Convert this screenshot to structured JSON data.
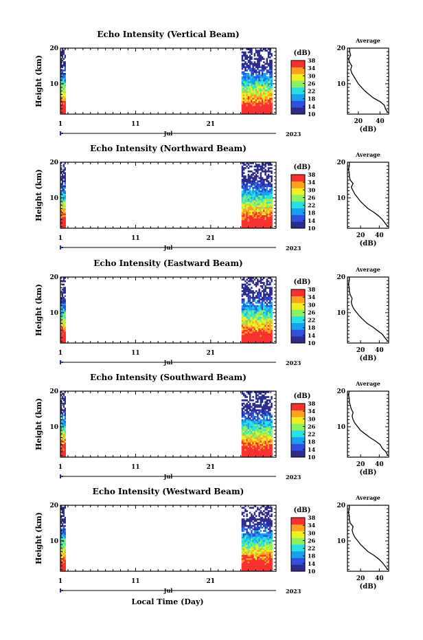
{
  "figure": {
    "x_axis_title": "Local Time (Day)",
    "month_label": "Jul",
    "year_label": "2023",
    "x_tick_labels": [
      "1",
      "11",
      "21"
    ],
    "y_axis_title": "Height (km)",
    "y_tick_labels": [
      "20",
      "10"
    ],
    "colorbar_unit": "(dB)",
    "colorbar_ticks": [
      "38",
      "34",
      "30",
      "26",
      "22",
      "18",
      "14",
      "10"
    ],
    "profile_title": "Average",
    "profile_xlabel": "(dB)",
    "colors": {
      "scale": [
        "#2c2c8c",
        "#3050e0",
        "#18a0f0",
        "#28e0e0",
        "#8cf060",
        "#f0f020",
        "#ffa020",
        "#f83030"
      ],
      "axis": "#000000",
      "time_marker": "#2030a0"
    }
  },
  "chart_data": [
    {
      "type": "heatmap",
      "title": "Echo Intensity (Vertical Beam)",
      "x_range_day": [
        1,
        29.7
      ],
      "y_range_km": [
        1.5,
        20
      ],
      "color_range_db": [
        10,
        38
      ],
      "data_segments_day": [
        [
          1,
          1.7
        ],
        [
          25.1,
          29.2
        ]
      ],
      "profile": {
        "title": "Average",
        "type": "line",
        "x_ticks": [
          "20",
          "40"
        ],
        "xlim": [
          10,
          48
        ],
        "points": [
          [
            47,
            2
          ],
          [
            45,
            3
          ],
          [
            44,
            4
          ],
          [
            40,
            5
          ],
          [
            34,
            6
          ],
          [
            30,
            7
          ],
          [
            26,
            8
          ],
          [
            23,
            9
          ],
          [
            20,
            10
          ],
          [
            18,
            11
          ],
          [
            16,
            12
          ],
          [
            14,
            13
          ],
          [
            13,
            14
          ],
          [
            14,
            15
          ],
          [
            12,
            16
          ],
          [
            11,
            17
          ],
          [
            13,
            18
          ],
          [
            12,
            19
          ],
          [
            12,
            20
          ]
        ]
      }
    },
    {
      "type": "heatmap",
      "title": "Echo Intensity (Northward Beam)",
      "x_range_day": [
        1,
        29.7
      ],
      "y_range_km": [
        1.5,
        20
      ],
      "color_range_db": [
        10,
        38
      ],
      "data_segments_day": [
        [
          1,
          1.7
        ],
        [
          25.1,
          29.2
        ]
      ],
      "profile": {
        "title": "Average",
        "type": "line",
        "x_ticks": [
          "20",
          "40"
        ],
        "xlim": [
          6,
          50
        ],
        "points": [
          [
            49,
            2
          ],
          [
            46,
            3
          ],
          [
            43,
            4
          ],
          [
            39,
            5
          ],
          [
            34,
            6
          ],
          [
            28,
            7
          ],
          [
            24,
            8
          ],
          [
            20,
            9
          ],
          [
            17,
            10
          ],
          [
            14,
            11
          ],
          [
            12,
            12
          ],
          [
            10,
            13
          ],
          [
            12,
            14
          ],
          [
            9,
            15
          ],
          [
            8,
            16
          ],
          [
            8,
            17
          ],
          [
            7,
            18
          ],
          [
            8,
            19
          ],
          [
            8,
            20
          ]
        ]
      }
    },
    {
      "type": "heatmap",
      "title": "Echo Intensity (Eastward Beam)",
      "x_range_day": [
        1,
        29.7
      ],
      "y_range_km": [
        1.5,
        20
      ],
      "color_range_db": [
        10,
        38
      ],
      "data_segments_day": [
        [
          1,
          1.7
        ],
        [
          25.1,
          29.2
        ]
      ],
      "profile": {
        "title": "Average",
        "type": "line",
        "x_ticks": [
          "20",
          "40"
        ],
        "xlim": [
          6,
          50
        ],
        "points": [
          [
            49,
            2
          ],
          [
            46,
            3
          ],
          [
            43,
            4
          ],
          [
            38,
            5
          ],
          [
            33,
            6
          ],
          [
            27,
            7
          ],
          [
            23,
            8
          ],
          [
            19,
            9
          ],
          [
            16,
            10
          ],
          [
            13,
            11
          ],
          [
            11,
            12
          ],
          [
            10,
            13
          ],
          [
            11,
            14
          ],
          [
            9,
            15
          ],
          [
            8,
            16
          ],
          [
            8,
            17
          ],
          [
            7,
            18
          ],
          [
            8,
            19
          ],
          [
            8,
            20
          ]
        ]
      }
    },
    {
      "type": "heatmap",
      "title": "Echo Intensity (Southward Beam)",
      "x_range_day": [
        1,
        29.7
      ],
      "y_range_km": [
        1.5,
        20
      ],
      "color_range_db": [
        10,
        38
      ],
      "data_segments_day": [
        [
          1,
          1.7
        ],
        [
          25.1,
          29.2
        ]
      ],
      "profile": {
        "title": "Average",
        "type": "line",
        "x_ticks": [
          "20",
          "40"
        ],
        "xlim": [
          6,
          50
        ],
        "points": [
          [
            49,
            2
          ],
          [
            47,
            3
          ],
          [
            43,
            4
          ],
          [
            41,
            5
          ],
          [
            36,
            6
          ],
          [
            30,
            7
          ],
          [
            25,
            8
          ],
          [
            20,
            9
          ],
          [
            17,
            10
          ],
          [
            14,
            11
          ],
          [
            12,
            12
          ],
          [
            11,
            13
          ],
          [
            12,
            14
          ],
          [
            10,
            15
          ],
          [
            9,
            16
          ],
          [
            8,
            17
          ],
          [
            8,
            18
          ],
          [
            7,
            19
          ],
          [
            8,
            20
          ]
        ]
      }
    },
    {
      "type": "heatmap",
      "title": "Echo Intensity (Westward Beam)",
      "x_range_day": [
        1,
        29.7
      ],
      "y_range_km": [
        1.5,
        20
      ],
      "color_range_db": [
        10,
        38
      ],
      "data_segments_day": [
        [
          1,
          1.7
        ],
        [
          25.1,
          29.2
        ]
      ],
      "profile": {
        "title": "Average",
        "type": "line",
        "x_ticks": [
          "20",
          "40"
        ],
        "xlim": [
          6,
          50
        ],
        "points": [
          [
            49,
            2
          ],
          [
            46,
            3
          ],
          [
            43,
            4
          ],
          [
            39,
            5
          ],
          [
            34,
            6
          ],
          [
            28,
            7
          ],
          [
            24,
            8
          ],
          [
            20,
            9
          ],
          [
            17,
            10
          ],
          [
            14,
            11
          ],
          [
            12,
            12
          ],
          [
            11,
            13
          ],
          [
            12,
            14
          ],
          [
            9,
            15
          ],
          [
            8,
            16
          ],
          [
            8,
            17
          ],
          [
            7,
            18
          ],
          [
            8,
            19
          ],
          [
            8,
            20
          ]
        ]
      }
    }
  ]
}
